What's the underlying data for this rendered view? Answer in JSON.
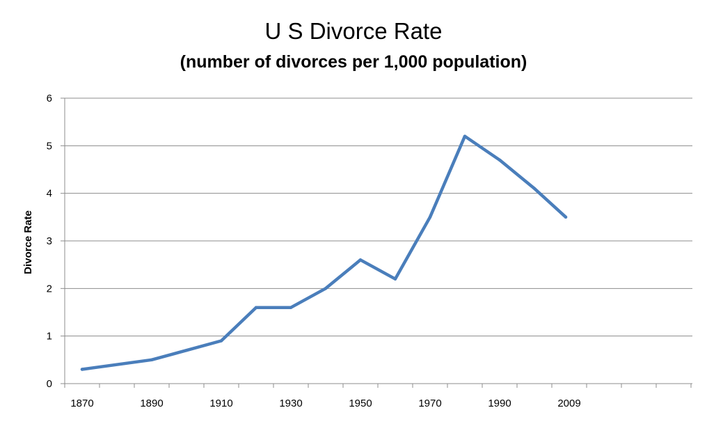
{
  "chart_data": {
    "type": "line",
    "title": "U S Divorce Rate",
    "subtitle": "(number of divorces per 1,000 population)",
    "xlabel": "",
    "ylabel": "Divorce Rate",
    "x": [
      1870,
      1890,
      1900,
      1910,
      1920,
      1930,
      1940,
      1950,
      1960,
      1970,
      1980,
      1990,
      2000,
      2009
    ],
    "x_tick_labels": [
      "1870",
      "1890",
      "1910",
      "1930",
      "1950",
      "1970",
      "1990",
      "2009"
    ],
    "y_ticks": [
      0,
      1,
      2,
      3,
      4,
      5,
      6
    ],
    "ylim": [
      0,
      6
    ],
    "grid": true,
    "legend": "none",
    "series": [
      {
        "values": [
          0.3,
          0.5,
          0.7,
          0.9,
          1.6,
          1.6,
          2.0,
          2.6,
          2.2,
          3.5,
          5.2,
          4.7,
          4.1,
          3.5
        ],
        "color": "#4a7ebb"
      }
    ]
  }
}
